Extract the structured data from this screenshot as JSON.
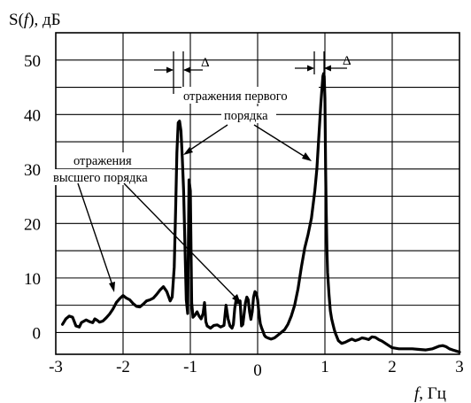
{
  "chart_data": {
    "type": "line",
    "ylabel_parts": [
      "S(",
      "f",
      "), дБ"
    ],
    "xlabel_parts": [
      "f",
      ", Гц"
    ],
    "xlim": [
      -3,
      3
    ],
    "ylim": [
      -4,
      55
    ],
    "grid": true,
    "x_ticks": [
      "-3",
      "-2",
      "-1",
      "0",
      "1",
      "2",
      "3"
    ],
    "y_ticks": [
      "0",
      "10",
      "20",
      "30",
      "40",
      "50"
    ],
    "series": [
      {
        "x": [
          -2.9,
          -2.85,
          -2.8,
          -2.75,
          -2.7,
          -2.65,
          -2.62,
          -2.55,
          -2.5,
          -2.45,
          -2.42,
          -2.38,
          -2.35,
          -2.3,
          -2.25,
          -2.2,
          -2.15,
          -2.1,
          -2.05,
          -2.0,
          -1.95,
          -1.9,
          -1.85,
          -1.8,
          -1.75,
          -1.7,
          -1.65,
          -1.6,
          -1.55,
          -1.5,
          -1.45,
          -1.4,
          -1.35,
          -1.3,
          -1.27,
          -1.24,
          -1.22,
          -1.2,
          -1.18,
          -1.16,
          -1.14,
          -1.12,
          -1.1,
          -1.08,
          -1.06,
          -1.04,
          -1.02,
          -1.0,
          -0.98,
          -0.96,
          -0.93,
          -0.9,
          -0.87,
          -0.84,
          -0.81,
          -0.79,
          -0.77,
          -0.75,
          -0.7,
          -0.65,
          -0.6,
          -0.55,
          -0.5,
          -0.47,
          -0.44,
          -0.41,
          -0.38,
          -0.36,
          -0.34,
          -0.32,
          -0.3,
          -0.28,
          -0.26,
          -0.24,
          -0.22,
          -0.2,
          -0.18,
          -0.16,
          -0.14,
          -0.12,
          -0.1,
          -0.08,
          -0.06,
          -0.04,
          -0.02,
          0.0,
          0.02,
          0.04,
          0.06,
          0.08,
          0.1,
          0.12,
          0.15,
          0.2,
          0.25,
          0.3,
          0.35,
          0.4,
          0.45,
          0.5,
          0.55,
          0.6,
          0.65,
          0.7,
          0.75,
          0.8,
          0.85,
          0.88,
          0.9,
          0.92,
          0.94,
          0.96,
          0.97,
          0.98,
          0.99,
          1.0,
          1.01,
          1.02,
          1.03,
          1.04,
          1.06,
          1.08,
          1.1,
          1.12,
          1.14,
          1.16,
          1.2,
          1.25,
          1.3,
          1.35,
          1.4,
          1.45,
          1.5,
          1.55,
          1.6,
          1.65,
          1.7,
          1.75,
          1.8,
          1.85,
          1.9,
          1.95,
          2.0,
          2.1,
          2.2,
          2.3,
          2.4,
          2.5,
          2.6,
          2.7,
          2.75,
          2.8,
          2.85,
          2.9,
          2.95,
          3.0
        ],
        "y": [
          1.5,
          2.5,
          3.0,
          2.8,
          1.2,
          1.0,
          1.8,
          2.3,
          2.0,
          1.8,
          2.5,
          2.2,
          1.9,
          2.1,
          2.7,
          3.4,
          4.3,
          5.5,
          6.2,
          6.8,
          6.3,
          6.0,
          5.3,
          4.8,
          4.7,
          5.2,
          5.8,
          6.0,
          6.3,
          7.0,
          7.8,
          8.4,
          7.5,
          5.8,
          6.5,
          12.0,
          22.0,
          33.0,
          38.5,
          38.8,
          37.0,
          32.0,
          26.0,
          16.0,
          6.0,
          3.5,
          28.0,
          26.0,
          5.5,
          2.8,
          3.2,
          3.8,
          3.0,
          2.5,
          3.5,
          5.5,
          2.0,
          1.2,
          0.8,
          1.3,
          1.4,
          1.0,
          1.3,
          5.0,
          2.5,
          1.2,
          0.8,
          1.5,
          4.5,
          6.0,
          5.5,
          5.5,
          5.8,
          1.2,
          1.5,
          3.5,
          5.5,
          6.5,
          6.0,
          3.8,
          2.4,
          3.8,
          6.5,
          7.5,
          7.2,
          6.0,
          3.5,
          1.6,
          0.8,
          0.2,
          -0.5,
          -0.8,
          -1.0,
          -1.2,
          -1.0,
          -0.5,
          0.0,
          0.5,
          1.5,
          3.0,
          5.0,
          8.0,
          12.0,
          15.5,
          18.0,
          21.0,
          26.0,
          30.0,
          34.0,
          38.0,
          42.0,
          45.5,
          47.0,
          47.5,
          47.0,
          43.0,
          30.0,
          22.0,
          15.0,
          11.0,
          7.0,
          4.0,
          2.5,
          1.5,
          0.5,
          -0.3,
          -1.5,
          -2.0,
          -1.8,
          -1.5,
          -1.2,
          -1.5,
          -1.3,
          -1.0,
          -1.1,
          -1.3,
          -0.8,
          -0.9,
          -1.3,
          -1.6,
          -2.0,
          -2.4,
          -2.8,
          -3.0,
          -3.0,
          -3.0,
          -3.1,
          -3.2,
          -3.0,
          -2.5,
          -2.4,
          -2.6,
          -3.0,
          -3.2,
          -3.4,
          -3.6
        ]
      }
    ]
  },
  "annotations": {
    "delta": "Δ",
    "first_order": [
      "отражения первого",
      "порядка"
    ],
    "higher_order": [
      "отражения",
      "высшего порядка"
    ]
  }
}
